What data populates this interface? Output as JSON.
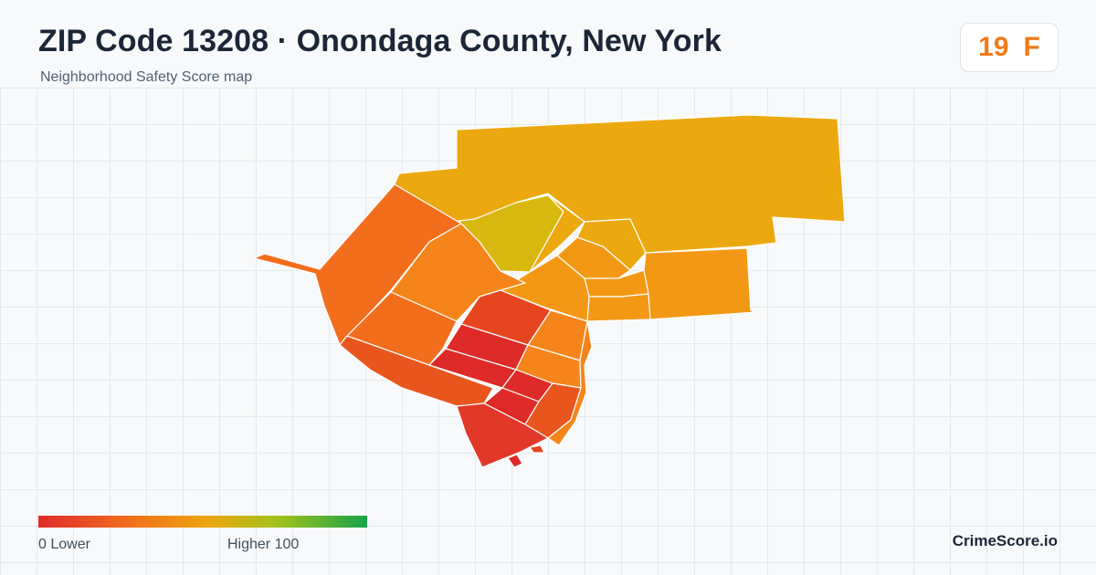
{
  "header": {
    "title": "ZIP Code 13208 · Onondaga County, New York",
    "subtitle": "Neighborhood Safety Score map"
  },
  "score": {
    "value": "19",
    "grade": "F",
    "color": "#ef7a1a"
  },
  "map": {
    "colors": {
      "red": "#de2a28",
      "red_orange": "#e6461f",
      "orange": "#f26d1c",
      "light_orange": "#f5851a",
      "amber": "#f39814",
      "gold": "#eba80f",
      "yellow_green": "#d8b80e",
      "border": "#ffffff"
    }
  },
  "legend": {
    "low_label": "0  Lower",
    "high_label": "Higher  100",
    "gradient": [
      "#e02b2b",
      "#f2741b",
      "#eaa60f",
      "#a6c21a",
      "#17a34a"
    ]
  },
  "brand": {
    "label": "CrimeScore.io"
  }
}
